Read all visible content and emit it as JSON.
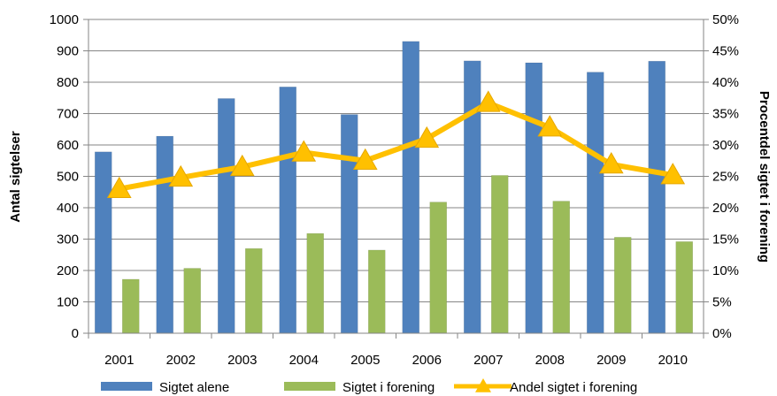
{
  "chart_data": {
    "type": "bar",
    "categories": [
      "2001",
      "2002",
      "2003",
      "2004",
      "2005",
      "2006",
      "2007",
      "2008",
      "2009",
      "2010"
    ],
    "series": [
      {
        "name": "Sigtet alene",
        "type": "bar",
        "axis": "left",
        "color": "#4F81BD",
        "values": [
          578,
          628,
          748,
          785,
          697,
          930,
          868,
          862,
          832,
          867
        ]
      },
      {
        "name": "Sigtet i forening",
        "type": "bar",
        "axis": "left",
        "color": "#9BBB59",
        "values": [
          172,
          207,
          270,
          318,
          265,
          418,
          503,
          421,
          306,
          292
        ]
      },
      {
        "name": "Andel sigtet i forening",
        "type": "line",
        "axis": "right",
        "color": "#FFC000",
        "marker": "triangle",
        "values": [
          0.23,
          0.248,
          0.265,
          0.288,
          0.275,
          0.31,
          0.367,
          0.328,
          0.269,
          0.252
        ]
      }
    ],
    "ylabel": "Antal sigtelser",
    "y2label": "Procentdel sigtet i forening",
    "ylim": [
      0,
      1000
    ],
    "y2lim": [
      0,
      0.5
    ],
    "yticks": [
      "0",
      "100",
      "200",
      "300",
      "400",
      "500",
      "600",
      "700",
      "800",
      "900",
      "1000"
    ],
    "y2ticks": [
      "0%",
      "5%",
      "10%",
      "15%",
      "20%",
      "25%",
      "30%",
      "35%",
      "40%",
      "45%",
      "50%"
    ],
    "grid": true,
    "legend": "bottom"
  }
}
